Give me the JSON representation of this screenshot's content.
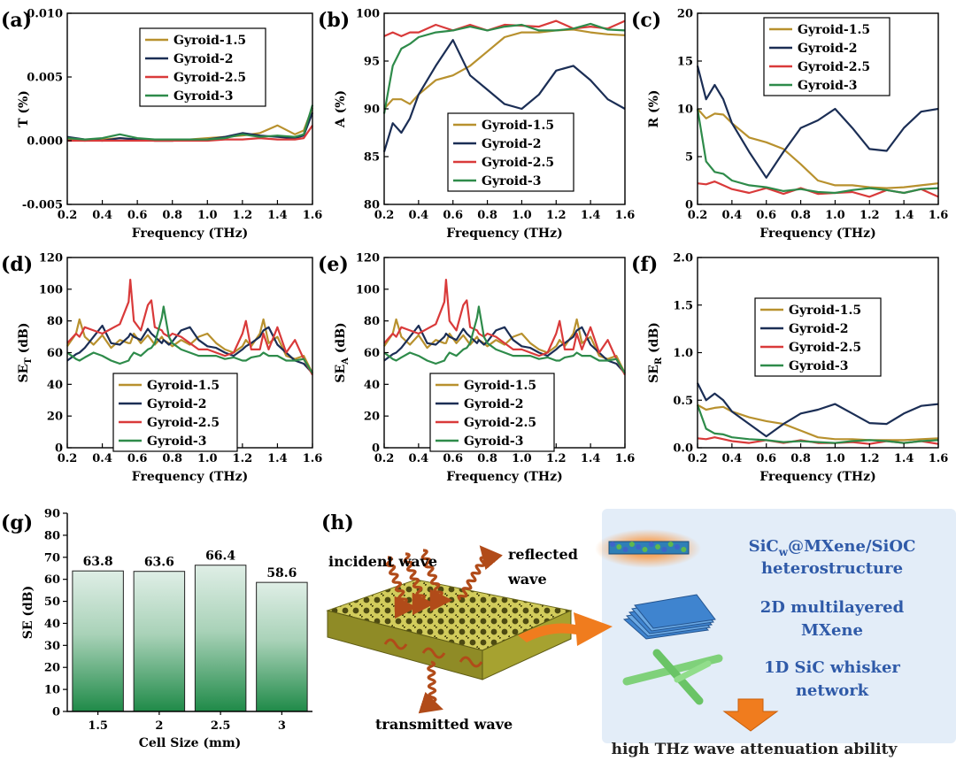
{
  "colors": {
    "s1": "#b8912e",
    "s2": "#1b2e55",
    "s3": "#d93a3a",
    "s4": "#2e8b4a"
  },
  "panels": {
    "a": {
      "label": "(a)",
      "ylabel": "T (%)",
      "xlabel": "Frequency (THz)",
      "xlim": [
        0.2,
        1.6
      ],
      "ylim": [
        -0.005,
        0.01
      ],
      "xticks": [
        "0.2",
        "0.4",
        "0.6",
        "0.8",
        "1.0",
        "1.2",
        "1.4",
        "1.6"
      ],
      "yticks": [
        "-0.005",
        "0.000",
        "0.005",
        "0.010"
      ],
      "legend": [
        "Gyroid-1.5",
        "Gyroid-2",
        "Gyroid-2.5",
        "Gyroid-3"
      ]
    },
    "b": {
      "label": "(b)",
      "ylabel": "A (%)",
      "xlabel": "Frequency (THz)",
      "xlim": [
        0.2,
        1.6
      ],
      "ylim": [
        80,
        100
      ],
      "xticks": [
        "0.2",
        "0.4",
        "0.6",
        "0.8",
        "1.0",
        "1.2",
        "1.4",
        "1.6"
      ],
      "yticks": [
        "80",
        "85",
        "90",
        "95",
        "100"
      ],
      "legend": [
        "Gyroid-1.5",
        "Gyroid-2",
        "Gyroid-2.5",
        "Gyroid-3"
      ]
    },
    "c": {
      "label": "(c)",
      "ylabel": "R (%)",
      "xlabel": "Frequency (THz)",
      "xlim": [
        0.2,
        1.6
      ],
      "ylim": [
        0,
        20
      ],
      "xticks": [
        "0.2",
        "0.4",
        "0.6",
        "0.8",
        "1.0",
        "1.2",
        "1.4",
        "1.6"
      ],
      "yticks": [
        "0",
        "5",
        "10",
        "15",
        "20"
      ],
      "legend": [
        "Gyroid-1.5",
        "Gyroid-2",
        "Gyroid-2.5",
        "Gyroid-3"
      ]
    },
    "d": {
      "label": "(d)",
      "ylabel": "SE",
      "ylabel_sub": "T",
      "ylabel_unit": " (dB)",
      "xlabel": "Frequency (THz)",
      "xlim": [
        0.2,
        1.6
      ],
      "ylim": [
        0,
        120
      ],
      "xticks": [
        "0.2",
        "0.4",
        "0.6",
        "0.8",
        "1.0",
        "1.2",
        "1.4",
        "1.6"
      ],
      "yticks": [
        "0",
        "20",
        "40",
        "60",
        "80",
        "100",
        "120"
      ],
      "legend": [
        "Gyroid-1.5",
        "Gyroid-2",
        "Gyroid-2.5",
        "Gyroid-3"
      ]
    },
    "e": {
      "label": "(e)",
      "ylabel": "SE",
      "ylabel_sub": "A",
      "ylabel_unit": " (dB)",
      "xlabel": "Frequency (THz)",
      "xlim": [
        0.2,
        1.6
      ],
      "ylim": [
        0,
        120
      ],
      "xticks": [
        "0.2",
        "0.4",
        "0.6",
        "0.8",
        "1.0",
        "1.2",
        "1.4",
        "1.6"
      ],
      "yticks": [
        "0",
        "20",
        "40",
        "60",
        "80",
        "100",
        "120"
      ],
      "legend": [
        "Gyroid-1.5",
        "Gyroid-2",
        "Gyroid-2.5",
        "Gyroid-3"
      ]
    },
    "f": {
      "label": "(f)",
      "ylabel": "SE",
      "ylabel_sub": "R",
      "ylabel_unit": " (dB)",
      "xlabel": "Frequency (THz)",
      "xlim": [
        0.2,
        1.6
      ],
      "ylim": [
        0,
        2.0
      ],
      "xticks": [
        "0.2",
        "0.4",
        "0.6",
        "0.8",
        "1.0",
        "1.2",
        "1.4",
        "1.6"
      ],
      "yticks": [
        "0.0",
        "0.5",
        "1.0",
        "1.5",
        "2.0"
      ],
      "legend": [
        "Gyroid-1.5",
        "Gyroid-2",
        "Gyroid-2.5",
        "Gyroid-3"
      ]
    },
    "g": {
      "label": "(g)",
      "ylabel": "SE (dB)",
      "xlabel": "Cell Size (mm)",
      "yticks": [
        "0",
        "10",
        "20",
        "30",
        "40",
        "50",
        "60",
        "70",
        "80",
        "90"
      ]
    },
    "h": {
      "label": "(h)",
      "incident": "incident wave",
      "reflected": "reflected",
      "reflected2": "wave",
      "transmitted": "transmitted wave",
      "item1a": "SiC",
      "item1sub": "w",
      "item1b": "@MXene/SiOC",
      "item1c": "heterostructure",
      "item2a": "2D multilayered",
      "item2b": "MXene",
      "item3a": "1D SiC whisker",
      "item3b": "network",
      "conclusion": "high THz wave attenuation ability"
    }
  },
  "chart_data": [
    {
      "panel": "a",
      "type": "line",
      "title": "",
      "xlabel": "Frequency (THz)",
      "ylabel": "T (%)",
      "x": [
        0.2,
        0.3,
        0.4,
        0.5,
        0.6,
        0.7,
        0.8,
        0.9,
        1.0,
        1.1,
        1.2,
        1.3,
        1.4,
        1.5,
        1.55,
        1.6
      ],
      "series": [
        {
          "name": "Gyroid-1.5",
          "values": [
            0.0001,
            0.0,
            0.0001,
            0.0002,
            0.0001,
            0.0,
            0.0,
            0.0001,
            0.0002,
            0.0003,
            0.0004,
            0.0006,
            0.0012,
            0.0005,
            0.0008,
            0.0026
          ]
        },
        {
          "name": "Gyroid-2",
          "values": [
            0.0003,
            0.0001,
            0.0,
            0.0002,
            0.0001,
            0.0,
            0.0,
            0.0001,
            0.0001,
            0.0003,
            0.0006,
            0.0004,
            0.0003,
            0.0002,
            0.0004,
            0.0022
          ]
        },
        {
          "name": "Gyroid-2.5",
          "values": [
            0.0,
            0.0,
            0.0,
            0.0,
            0.0,
            0.0,
            0.0,
            0.0,
            0.0,
            0.0001,
            0.0001,
            0.0002,
            0.0001,
            0.0001,
            0.0002,
            0.0012
          ]
        },
        {
          "name": "Gyroid-3",
          "values": [
            0.0002,
            0.0001,
            0.0002,
            0.0005,
            0.0002,
            0.0001,
            0.0001,
            0.0001,
            0.0001,
            0.0002,
            0.0005,
            0.0003,
            0.0004,
            0.0003,
            0.0005,
            0.0028
          ]
        }
      ]
    },
    {
      "panel": "b",
      "type": "line",
      "title": "",
      "xlabel": "Frequency (THz)",
      "ylabel": "A (%)",
      "x": [
        0.2,
        0.25,
        0.3,
        0.35,
        0.4,
        0.5,
        0.6,
        0.7,
        0.8,
        0.9,
        1.0,
        1.1,
        1.2,
        1.3,
        1.4,
        1.5,
        1.6
      ],
      "series": [
        {
          "name": "Gyroid-1.5",
          "values": [
            90,
            91,
            91,
            90.5,
            91.5,
            93,
            93.5,
            94.5,
            96,
            97.5,
            98,
            98,
            98.2,
            98.3,
            98,
            97.8,
            97.7
          ]
        },
        {
          "name": "Gyroid-2",
          "values": [
            85.5,
            88.5,
            87.5,
            89,
            91.5,
            94.5,
            97.2,
            93.5,
            92,
            90.5,
            90,
            91.5,
            94,
            94.5,
            93,
            91,
            90
          ]
        },
        {
          "name": "Gyroid-2.5",
          "values": [
            97.6,
            98,
            97.6,
            98,
            98,
            98.8,
            98.2,
            98.8,
            98.2,
            98.8,
            98.7,
            98.6,
            99.2,
            98.4,
            98.6,
            98.4,
            99.2
          ]
        },
        {
          "name": "Gyroid-3",
          "values": [
            89.5,
            94.5,
            96.3,
            96.8,
            97.5,
            98,
            98.2,
            98.6,
            98.2,
            98.6,
            98.8,
            98.2,
            98.2,
            98.4,
            98.9,
            98.3,
            98.2
          ]
        }
      ]
    },
    {
      "panel": "c",
      "type": "line",
      "title": "",
      "xlabel": "Frequency (THz)",
      "ylabel": "R (%)",
      "x": [
        0.2,
        0.25,
        0.3,
        0.35,
        0.4,
        0.5,
        0.6,
        0.7,
        0.8,
        0.9,
        1.0,
        1.1,
        1.2,
        1.3,
        1.4,
        1.5,
        1.6
      ],
      "series": [
        {
          "name": "Gyroid-1.5",
          "values": [
            10,
            9,
            9.5,
            9.4,
            8.5,
            7,
            6.5,
            5.8,
            4.2,
            2.5,
            2,
            2,
            1.8,
            1.7,
            1.8,
            2,
            2.2
          ]
        },
        {
          "name": "Gyroid-2",
          "values": [
            14.5,
            11,
            12.5,
            11,
            8.5,
            5.5,
            2.8,
            5.5,
            8,
            8.8,
            10,
            8,
            5.8,
            5.6,
            8,
            9.7,
            10
          ]
        },
        {
          "name": "Gyroid-2.5",
          "values": [
            2.2,
            2.1,
            2.4,
            2,
            1.6,
            1.2,
            1.7,
            1.1,
            1.7,
            1.1,
            1.2,
            1.3,
            0.8,
            1.5,
            1.2,
            1.6,
            0.8
          ]
        },
        {
          "name": "Gyroid-3",
          "values": [
            10,
            4.5,
            3.4,
            3.2,
            2.5,
            2,
            1.8,
            1.4,
            1.6,
            1.3,
            1.2,
            1.5,
            1.7,
            1.5,
            1.2,
            1.6,
            1.7
          ]
        }
      ]
    },
    {
      "panel": "d",
      "type": "line",
      "title": "",
      "xlabel": "Frequency (THz)",
      "ylabel": "SE_T (dB)",
      "x": [
        0.2,
        0.25,
        0.27,
        0.3,
        0.35,
        0.4,
        0.45,
        0.5,
        0.55,
        0.56,
        0.58,
        0.62,
        0.66,
        0.68,
        0.7,
        0.74,
        0.75,
        0.78,
        0.8,
        0.85,
        0.9,
        0.95,
        1.0,
        1.05,
        1.1,
        1.15,
        1.2,
        1.22,
        1.25,
        1.3,
        1.32,
        1.35,
        1.4,
        1.45,
        1.5,
        1.55,
        1.6
      ],
      "series": [
        {
          "name": "Gyroid-1.5",
          "values": [
            64,
            72,
            81,
            70,
            65,
            71,
            63,
            68,
            66,
            66,
            72,
            66,
            71,
            68,
            65,
            70,
            68,
            66,
            64,
            68,
            65,
            70,
            72,
            66,
            62,
            60,
            64,
            68,
            64,
            72,
            81,
            66,
            70,
            58,
            56,
            58,
            47
          ]
        },
        {
          "name": "Gyroid-2",
          "values": [
            55,
            59,
            60,
            63,
            70,
            77,
            66,
            65,
            70,
            72,
            70,
            68,
            75,
            72,
            70,
            66,
            68,
            65,
            67,
            74,
            76,
            68,
            64,
            63,
            60,
            58,
            62,
            64,
            66,
            70,
            74,
            76,
            65,
            60,
            55,
            53,
            47
          ]
        },
        {
          "name": "Gyroid-2.5",
          "values": [
            66,
            72,
            70,
            76,
            74,
            72,
            75,
            78,
            92,
            106,
            80,
            74,
            90,
            93,
            76,
            74,
            72,
            70,
            72,
            70,
            66,
            62,
            62,
            60,
            58,
            60,
            72,
            80,
            62,
            62,
            72,
            62,
            76,
            60,
            68,
            56,
            46
          ]
        },
        {
          "name": "Gyroid-3",
          "values": [
            60,
            56,
            55,
            57,
            60,
            58,
            55,
            53,
            55,
            57,
            60,
            58,
            62,
            63,
            66,
            82,
            89,
            70,
            66,
            62,
            60,
            58,
            58,
            58,
            56,
            57,
            55,
            55,
            57,
            58,
            60,
            58,
            58,
            55,
            55,
            56,
            47
          ]
        }
      ]
    },
    {
      "panel": "e",
      "type": "line",
      "title": "",
      "xlabel": "Frequency (THz)",
      "ylabel": "SE_A (dB)",
      "x": [
        0.2,
        0.25,
        0.27,
        0.3,
        0.35,
        0.4,
        0.45,
        0.5,
        0.55,
        0.56,
        0.58,
        0.62,
        0.66,
        0.68,
        0.7,
        0.74,
        0.75,
        0.78,
        0.8,
        0.85,
        0.9,
        0.95,
        1.0,
        1.05,
        1.1,
        1.15,
        1.2,
        1.22,
        1.25,
        1.3,
        1.32,
        1.35,
        1.4,
        1.45,
        1.5,
        1.55,
        1.6
      ],
      "series": [
        {
          "name": "Gyroid-1.5",
          "values": [
            64,
            72,
            81,
            70,
            65,
            71,
            63,
            68,
            66,
            66,
            72,
            66,
            71,
            68,
            65,
            70,
            68,
            66,
            64,
            68,
            65,
            70,
            72,
            66,
            62,
            60,
            64,
            68,
            64,
            72,
            81,
            66,
            70,
            58,
            56,
            58,
            47
          ]
        },
        {
          "name": "Gyroid-2",
          "values": [
            55,
            59,
            60,
            63,
            70,
            77,
            66,
            65,
            70,
            72,
            70,
            68,
            75,
            72,
            70,
            66,
            68,
            65,
            67,
            74,
            76,
            68,
            64,
            63,
            60,
            58,
            62,
            64,
            66,
            70,
            74,
            76,
            65,
            60,
            55,
            53,
            47
          ]
        },
        {
          "name": "Gyroid-2.5",
          "values": [
            66,
            72,
            70,
            76,
            74,
            72,
            75,
            78,
            92,
            106,
            80,
            74,
            90,
            93,
            76,
            74,
            72,
            70,
            72,
            70,
            66,
            62,
            62,
            60,
            58,
            60,
            72,
            80,
            62,
            62,
            72,
            62,
            76,
            60,
            68,
            56,
            46
          ]
        },
        {
          "name": "Gyroid-3",
          "values": [
            60,
            56,
            55,
            57,
            60,
            58,
            55,
            53,
            55,
            57,
            60,
            58,
            62,
            63,
            66,
            82,
            89,
            70,
            66,
            62,
            60,
            58,
            58,
            58,
            56,
            57,
            55,
            55,
            57,
            58,
            60,
            58,
            58,
            55,
            55,
            56,
            47
          ]
        }
      ]
    },
    {
      "panel": "f",
      "type": "line",
      "title": "",
      "xlabel": "Frequency (THz)",
      "ylabel": "SE_R (dB)",
      "x": [
        0.2,
        0.25,
        0.3,
        0.35,
        0.4,
        0.5,
        0.6,
        0.7,
        0.8,
        0.9,
        1.0,
        1.1,
        1.2,
        1.3,
        1.4,
        1.5,
        1.6
      ],
      "series": [
        {
          "name": "Gyroid-1.5",
          "values": [
            0.45,
            0.4,
            0.42,
            0.43,
            0.38,
            0.32,
            0.28,
            0.25,
            0.18,
            0.11,
            0.09,
            0.09,
            0.08,
            0.08,
            0.08,
            0.09,
            0.1
          ]
        },
        {
          "name": "Gyroid-2",
          "values": [
            0.68,
            0.5,
            0.57,
            0.5,
            0.38,
            0.25,
            0.12,
            0.25,
            0.36,
            0.4,
            0.46,
            0.36,
            0.26,
            0.25,
            0.36,
            0.44,
            0.46
          ]
        },
        {
          "name": "Gyroid-2.5",
          "values": [
            0.1,
            0.09,
            0.11,
            0.09,
            0.07,
            0.05,
            0.08,
            0.05,
            0.08,
            0.05,
            0.05,
            0.06,
            0.04,
            0.07,
            0.05,
            0.07,
            0.04
          ]
        },
        {
          "name": "Gyroid-3",
          "values": [
            0.45,
            0.2,
            0.15,
            0.14,
            0.11,
            0.09,
            0.08,
            0.06,
            0.07,
            0.06,
            0.05,
            0.07,
            0.08,
            0.07,
            0.05,
            0.07,
            0.08
          ]
        }
      ]
    },
    {
      "panel": "g",
      "type": "bar",
      "title": "",
      "xlabel": "Cell Size (mm)",
      "ylabel": "SE (dB)",
      "categories": [
        "1.5",
        "2",
        "2.5",
        "3"
      ],
      "values": [
        63.8,
        63.6,
        66.4,
        58.6
      ],
      "labels": [
        "63.8",
        "63.6",
        "66.4",
        "58.6"
      ],
      "ylim": [
        0,
        90
      ]
    }
  ]
}
